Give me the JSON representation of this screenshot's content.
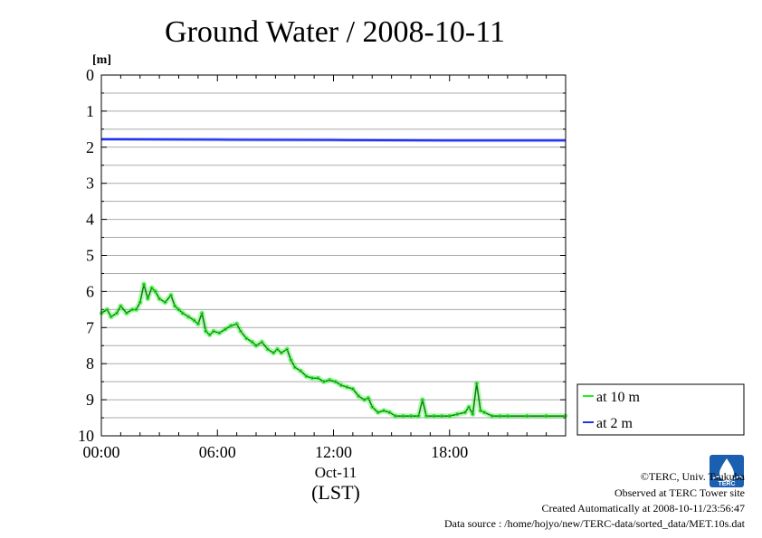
{
  "chart_data": {
    "type": "line",
    "title": "Ground Water / 2008-10-11",
    "ylabel": "[m]",
    "xlabel": "(LST)",
    "date_label": "Oct-11",
    "ylim": [
      0,
      10
    ],
    "y_inverted": true,
    "y_ticks": [
      "0",
      "1",
      "2",
      "3",
      "4",
      "5",
      "6",
      "7",
      "8",
      "9",
      "10"
    ],
    "xlim": [
      0,
      24
    ],
    "x_ticks": [
      {
        "value": 0,
        "label": "00:00"
      },
      {
        "value": 6,
        "label": "06:00"
      },
      {
        "value": 12,
        "label": "12:00"
      },
      {
        "value": 18,
        "label": "18:00"
      }
    ],
    "grid": "horizontal",
    "legend_position": "right",
    "series": [
      {
        "name": "at 10 m",
        "color": "#22ee22",
        "x": [
          0.0,
          0.3,
          0.5,
          0.8,
          1.0,
          1.3,
          1.6,
          1.8,
          2.0,
          2.2,
          2.4,
          2.6,
          2.8,
          3.0,
          3.3,
          3.6,
          3.8,
          4.0,
          4.2,
          4.5,
          4.8,
          5.0,
          5.2,
          5.4,
          5.6,
          5.8,
          6.1,
          6.4,
          6.7,
          7.0,
          7.2,
          7.5,
          7.8,
          8.0,
          8.3,
          8.6,
          8.9,
          9.1,
          9.3,
          9.6,
          9.8,
          10.0,
          10.3,
          10.6,
          10.9,
          11.2,
          11.5,
          11.8,
          12.1,
          12.4,
          12.7,
          13.0,
          13.3,
          13.6,
          13.8,
          14.0,
          14.3,
          14.6,
          14.9,
          15.2,
          15.6,
          16.0,
          16.4,
          16.6,
          16.8,
          17.2,
          17.6,
          18.0,
          18.4,
          18.8,
          19.0,
          19.2,
          19.4,
          19.6,
          19.8,
          20.2,
          20.6,
          21.0,
          22.0,
          23.0,
          24.0
        ],
        "values": [
          6.6,
          6.5,
          6.7,
          6.6,
          6.4,
          6.6,
          6.5,
          6.5,
          6.3,
          5.8,
          6.2,
          5.9,
          6.0,
          6.2,
          6.3,
          6.1,
          6.4,
          6.5,
          6.6,
          6.7,
          6.8,
          6.9,
          6.6,
          7.1,
          7.2,
          7.1,
          7.15,
          7.05,
          6.95,
          6.9,
          7.1,
          7.3,
          7.4,
          7.5,
          7.4,
          7.6,
          7.7,
          7.6,
          7.7,
          7.6,
          7.9,
          8.1,
          8.2,
          8.35,
          8.4,
          8.4,
          8.5,
          8.45,
          8.5,
          8.6,
          8.65,
          8.7,
          8.9,
          9.0,
          8.95,
          9.2,
          9.35,
          9.3,
          9.35,
          9.45,
          9.45,
          9.45,
          9.45,
          9.0,
          9.45,
          9.45,
          9.45,
          9.45,
          9.4,
          9.35,
          9.2,
          9.4,
          8.55,
          9.3,
          9.35,
          9.45,
          9.45,
          9.45,
          9.45,
          9.45,
          9.45
        ]
      },
      {
        "name": "at 2 m",
        "color": "#2233ee",
        "x": [
          0,
          6,
          12,
          18,
          24
        ],
        "values": [
          1.78,
          1.79,
          1.8,
          1.81,
          1.81
        ]
      }
    ]
  },
  "credits": {
    "copyright": "©TERC, Univ. Tsukuba",
    "observed": "Observed at TERC Tower site",
    "created": "Created Automatically at 2008-10-11/23:56:47",
    "source": "Data source : /home/hojyo/new/TERC-data/sorted_data/MET.10s.dat",
    "logo_text": "TERC"
  },
  "colors": {
    "grid": "#aaaaaa",
    "logo_blue": "#1a5fb0"
  }
}
